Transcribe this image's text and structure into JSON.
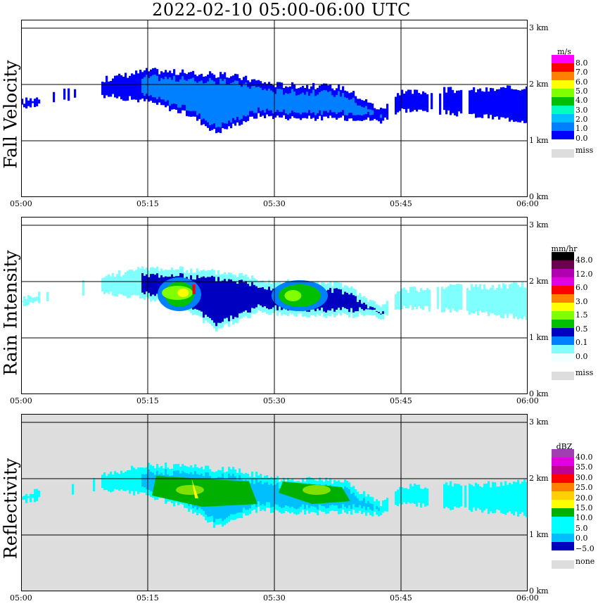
{
  "title": "2022-02-10   05:00-06:00 UTC",
  "time_ticks": [
    "05:00",
    "05:15",
    "05:30",
    "05:45",
    "06:00"
  ],
  "height_ticks": [
    "3 km",
    "2 km",
    "1 km",
    "0 km"
  ],
  "panels": [
    {
      "ylabel": "Fall Velocity",
      "unit": "m/s",
      "background": "#ffffff",
      "colorbar": {
        "colors": [
          "#ff00ff",
          "#ff0000",
          "#ff7f00",
          "#ffff00",
          "#7fff00",
          "#00bf00",
          "#00ffbf",
          "#00bfff",
          "#0080ff",
          "#0000ff"
        ],
        "labels": [
          "8.0",
          "7.0",
          "6.0",
          "5.0",
          "4.0",
          "3.0",
          "2.0",
          "1.0",
          "0.0"
        ],
        "missing_label": "miss"
      }
    },
    {
      "ylabel": "Rain Intensity",
      "unit": "mm/hr",
      "background": "#ffffff",
      "colorbar": {
        "colors": [
          "#000000",
          "#6a0050",
          "#b000b0",
          "#e000e0",
          "#ff0000",
          "#ff8000",
          "#ffff00",
          "#80ff00",
          "#00c000",
          "#0000c0",
          "#0080ff",
          "#80ffff",
          "#f0ffff"
        ],
        "labels": [
          "48.0",
          "12.0",
          "6.0",
          "3.0",
          "1.5",
          "0.5",
          "0.1",
          "0.0"
        ],
        "missing_label": "miss"
      }
    },
    {
      "ylabel": "Reflectivity",
      "unit": "dBZ",
      "background": "#dddddd",
      "colorbar": {
        "colors": [
          "#a040b0",
          "#e000e0",
          "#c00090",
          "#ff0000",
          "#ff8000",
          "#ffd000",
          "#ffff00",
          "#00b000",
          "#00ffff",
          "#00ffff",
          "#00bfff",
          "#0000c0"
        ],
        "labels": [
          "40.0",
          "35.0",
          "30.0",
          "25.0",
          "20.0",
          "15.0",
          "10.0",
          "5.0",
          "0.0",
          "−5.0"
        ],
        "missing_label": "none"
      }
    }
  ],
  "chart_data": [
    {
      "type": "heatmap",
      "title": "2022-02-10   05:00-06:00 UTC",
      "ylabel": "Fall Velocity",
      "unit": "m/s",
      "x_range": [
        "05:00",
        "06:00"
      ],
      "y_range_km": [
        0,
        3.2
      ],
      "echo_top_km": [
        [
          0.0,
          1.7
        ],
        [
          10.0,
          2.1
        ],
        [
          15.0,
          2.25
        ],
        [
          25.0,
          2.15
        ],
        [
          30.0,
          2.0
        ],
        [
          38.0,
          1.95
        ],
        [
          42.5,
          1.55
        ],
        [
          45.0,
          1.85
        ],
        [
          50.0,
          1.9
        ],
        [
          55.0,
          1.9
        ],
        [
          60.0,
          1.95
        ]
      ],
      "echo_base_km": [
        [
          0.0,
          1.6
        ],
        [
          10.0,
          1.8
        ],
        [
          15.0,
          1.7
        ],
        [
          20.0,
          1.45
        ],
        [
          23.0,
          1.15
        ],
        [
          28.0,
          1.45
        ],
        [
          33.0,
          1.4
        ],
        [
          40.0,
          1.4
        ],
        [
          42.5,
          1.35
        ],
        [
          45.0,
          1.55
        ],
        [
          50.0,
          1.5
        ],
        [
          60.0,
          1.35
        ]
      ],
      "typical_value": "1.0-2.0"
    },
    {
      "type": "heatmap",
      "ylabel": "Rain Intensity",
      "unit": "mm/hr",
      "x_range": [
        "05:00",
        "06:00"
      ],
      "y_range_km": [
        0,
        3.2
      ],
      "echo_top_km": [
        [
          0.0,
          1.7
        ],
        [
          10.0,
          2.1
        ],
        [
          15.0,
          2.25
        ],
        [
          25.0,
          2.15
        ],
        [
          30.0,
          2.0
        ],
        [
          38.0,
          1.95
        ],
        [
          42.5,
          1.55
        ],
        [
          45.0,
          1.85
        ],
        [
          50.0,
          1.9
        ],
        [
          55.0,
          1.9
        ],
        [
          60.0,
          1.95
        ]
      ],
      "echo_base_km": [
        [
          0.0,
          1.6
        ],
        [
          10.0,
          1.8
        ],
        [
          15.0,
          1.7
        ],
        [
          20.0,
          1.45
        ],
        [
          23.0,
          1.15
        ],
        [
          28.0,
          1.45
        ],
        [
          33.0,
          1.4
        ],
        [
          40.0,
          1.4
        ],
        [
          42.5,
          1.35
        ],
        [
          45.0,
          1.55
        ],
        [
          50.0,
          1.5
        ],
        [
          60.0,
          1.35
        ]
      ],
      "cores": [
        [
          17.0,
          20.5,
          1.55,
          2.0,
          "3.0"
        ],
        [
          30.5,
          35.5,
          1.55,
          1.95,
          "1.5"
        ]
      ]
    },
    {
      "type": "heatmap",
      "ylabel": "Reflectivity",
      "unit": "dBZ",
      "x_range": [
        "05:00",
        "06:00"
      ],
      "y_range_km": [
        0,
        3.2
      ],
      "echo_top_km": [
        [
          0.0,
          1.7
        ],
        [
          10.0,
          2.1
        ],
        [
          15.0,
          2.25
        ],
        [
          25.0,
          2.15
        ],
        [
          30.0,
          2.0
        ],
        [
          38.0,
          1.95
        ],
        [
          42.5,
          1.55
        ],
        [
          45.0,
          1.85
        ],
        [
          50.0,
          1.9
        ],
        [
          55.0,
          1.9
        ],
        [
          60.0,
          1.95
        ]
      ],
      "echo_base_km": [
        [
          0.0,
          1.6
        ],
        [
          10.0,
          1.8
        ],
        [
          15.0,
          1.7
        ],
        [
          20.0,
          1.45
        ],
        [
          23.0,
          1.15
        ],
        [
          28.0,
          1.45
        ],
        [
          33.0,
          1.4
        ],
        [
          40.0,
          1.4
        ],
        [
          42.5,
          1.35
        ],
        [
          45.0,
          1.55
        ],
        [
          50.0,
          1.5
        ],
        [
          60.0,
          1.35
        ]
      ],
      "cores": [
        [
          16.0,
          27.0,
          1.5,
          2.05,
          "15.0"
        ],
        [
          31.0,
          38.0,
          1.55,
          1.95,
          "15.0"
        ]
      ]
    }
  ]
}
